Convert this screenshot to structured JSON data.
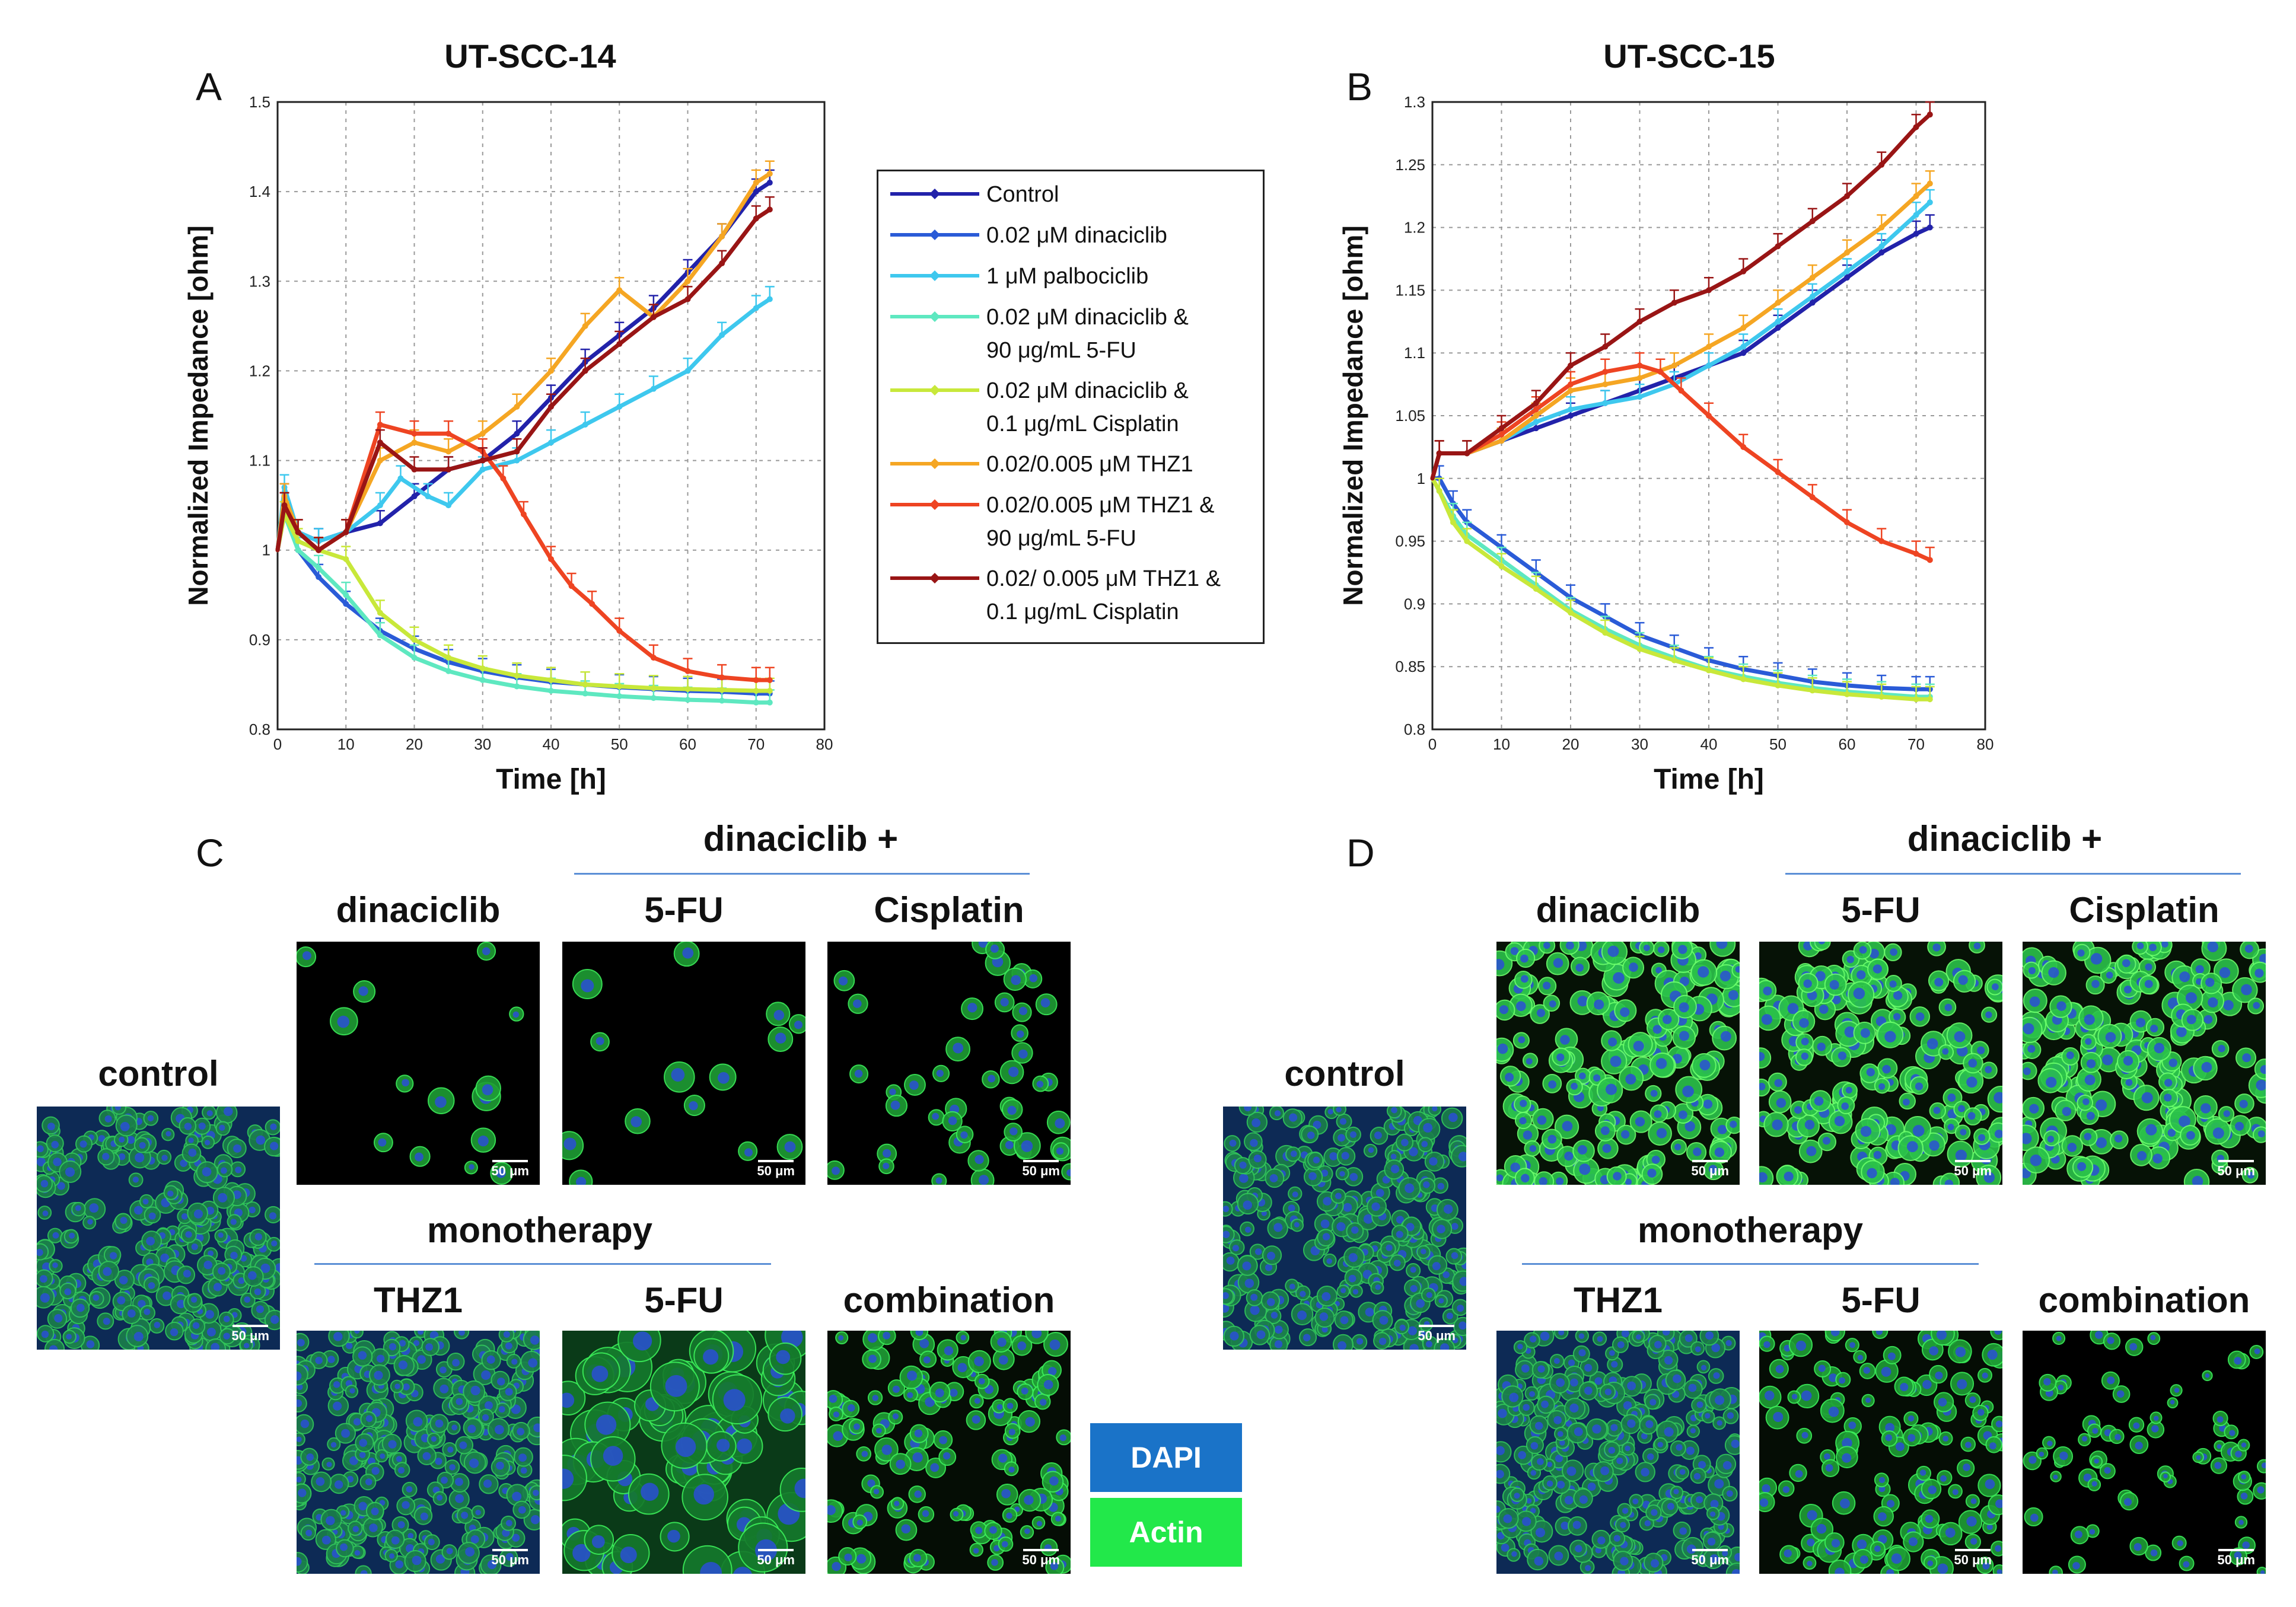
{
  "panels": {
    "a_letter": "A",
    "b_letter": "B",
    "c_letter": "C",
    "d_letter": "D"
  },
  "chart_data": [
    {
      "type": "line",
      "title": "UT-SCC-14",
      "xlabel": "Time [h]",
      "ylabel": "Normalized Impedance [ohm]",
      "xlim": [
        0,
        80
      ],
      "ylim": [
        0.8,
        1.5
      ],
      "xticks": [
        0,
        10,
        20,
        30,
        40,
        50,
        60,
        70,
        80
      ],
      "yticks": [
        0.8,
        0.9,
        1.0,
        1.1,
        1.2,
        1.3,
        1.4,
        1.5
      ],
      "ytick_labels": [
        "0.8",
        "0.9",
        "1",
        "1.1",
        "1.2",
        "1.3",
        "1.4",
        "1.5"
      ],
      "grid": true,
      "series": [
        {
          "name": "Control",
          "color": "#2222aa",
          "x": [
            0,
            1,
            3,
            6,
            10,
            15,
            20,
            25,
            30,
            35,
            40,
            45,
            50,
            55,
            60,
            65,
            70,
            72
          ],
          "y": [
            1.0,
            1.06,
            1.02,
            1.01,
            1.02,
            1.03,
            1.06,
            1.09,
            1.1,
            1.13,
            1.17,
            1.21,
            1.24,
            1.27,
            1.31,
            1.35,
            1.4,
            1.41
          ]
        },
        {
          "name": "0.02 μM dinaciclib",
          "color": "#2a5bd7",
          "x": [
            0,
            1,
            3,
            6,
            10,
            15,
            20,
            25,
            30,
            35,
            40,
            45,
            50,
            55,
            60,
            65,
            70,
            72
          ],
          "y": [
            1.0,
            1.05,
            1.0,
            0.97,
            0.94,
            0.91,
            0.89,
            0.875,
            0.865,
            0.858,
            0.853,
            0.85,
            0.847,
            0.845,
            0.843,
            0.842,
            0.84,
            0.84
          ]
        },
        {
          "name": "1 μM palbociclib",
          "color": "#3ec8ee",
          "x": [
            0,
            1,
            3,
            6,
            10,
            15,
            18,
            22,
            25,
            30,
            35,
            40,
            45,
            50,
            55,
            60,
            65,
            70,
            72
          ],
          "y": [
            1.0,
            1.07,
            1.02,
            1.01,
            1.02,
            1.05,
            1.08,
            1.06,
            1.05,
            1.09,
            1.1,
            1.12,
            1.14,
            1.16,
            1.18,
            1.2,
            1.24,
            1.27,
            1.28
          ]
        },
        {
          "name": "0.02 μM dinaciclib & 90 μg/mL 5-FU",
          "color": "#5ee8c0",
          "x": [
            0,
            1,
            3,
            6,
            10,
            15,
            20,
            25,
            30,
            35,
            40,
            45,
            50,
            55,
            60,
            65,
            70,
            72
          ],
          "y": [
            1.0,
            1.04,
            1.0,
            0.98,
            0.95,
            0.905,
            0.88,
            0.865,
            0.855,
            0.848,
            0.843,
            0.84,
            0.837,
            0.835,
            0.833,
            0.832,
            0.83,
            0.83
          ]
        },
        {
          "name": "0.02 μM dinaciclib & 0.1 μg/mL Cisplatin",
          "color": "#c8e83a",
          "x": [
            0,
            1,
            3,
            6,
            10,
            15,
            20,
            25,
            30,
            35,
            40,
            45,
            50,
            55,
            60,
            65,
            70,
            72
          ],
          "y": [
            1.0,
            1.04,
            1.01,
            1.0,
            0.99,
            0.93,
            0.9,
            0.88,
            0.868,
            0.86,
            0.855,
            0.85,
            0.848,
            0.846,
            0.845,
            0.844,
            0.843,
            0.843
          ]
        },
        {
          "name": "0.02/0.005 μM THZ1",
          "color": "#f5a623",
          "x": [
            0,
            1,
            3,
            6,
            10,
            15,
            20,
            25,
            30,
            35,
            40,
            45,
            50,
            55,
            60,
            65,
            70,
            72
          ],
          "y": [
            1.0,
            1.06,
            1.02,
            1.0,
            1.02,
            1.1,
            1.12,
            1.11,
            1.13,
            1.16,
            1.2,
            1.25,
            1.29,
            1.26,
            1.3,
            1.35,
            1.41,
            1.42
          ]
        },
        {
          "name": "0.02/0.005 μM THZ1 & 90 μg/mL 5-FU",
          "color": "#ee4422",
          "x": [
            0,
            1,
            3,
            6,
            10,
            15,
            20,
            25,
            30,
            33,
            36,
            40,
            43,
            46,
            50,
            55,
            60,
            65,
            70,
            72
          ],
          "y": [
            1.0,
            1.05,
            1.02,
            1.0,
            1.02,
            1.14,
            1.13,
            1.13,
            1.11,
            1.08,
            1.04,
            0.99,
            0.96,
            0.94,
            0.91,
            0.88,
            0.865,
            0.858,
            0.855,
            0.855
          ]
        },
        {
          "name": "0.02/ 0.005 μM THZ1 & 0.1 μg/mL Cisplatin",
          "color": "#991515",
          "x": [
            0,
            1,
            3,
            6,
            10,
            15,
            20,
            25,
            30,
            35,
            40,
            45,
            50,
            55,
            60,
            65,
            70,
            72
          ],
          "y": [
            1.0,
            1.05,
            1.02,
            1.0,
            1.02,
            1.12,
            1.09,
            1.09,
            1.1,
            1.11,
            1.16,
            1.2,
            1.23,
            1.26,
            1.28,
            1.32,
            1.37,
            1.38
          ]
        }
      ]
    },
    {
      "type": "line",
      "title": "UT-SCC-15",
      "xlabel": "Time [h]",
      "ylabel": "Normalized Impedance [ohm]",
      "xlim": [
        0,
        80
      ],
      "ylim": [
        0.8,
        1.3
      ],
      "xticks": [
        0,
        10,
        20,
        30,
        40,
        50,
        60,
        70,
        80
      ],
      "yticks": [
        0.8,
        0.85,
        0.9,
        0.95,
        1.0,
        1.05,
        1.1,
        1.15,
        1.2,
        1.25,
        1.3
      ],
      "ytick_labels": [
        "0.8",
        "0.85",
        "0.9",
        "0.95",
        "1",
        "1.05",
        "1.1",
        "1.15",
        "1.2",
        "1.25",
        "1.3"
      ],
      "grid": true,
      "series": [
        {
          "name": "Control",
          "color": "#2222aa",
          "x": [
            0,
            1,
            5,
            10,
            15,
            20,
            25,
            30,
            35,
            40,
            45,
            50,
            55,
            60,
            65,
            70,
            72
          ],
          "y": [
            1.0,
            1.02,
            1.02,
            1.03,
            1.04,
            1.05,
            1.06,
            1.07,
            1.08,
            1.09,
            1.1,
            1.12,
            1.14,
            1.16,
            1.18,
            1.195,
            1.2
          ]
        },
        {
          "name": "0.02 μM dinaciclib",
          "color": "#2a5bd7",
          "x": [
            0,
            1,
            3,
            5,
            10,
            15,
            20,
            25,
            30,
            35,
            40,
            45,
            50,
            55,
            60,
            65,
            70,
            72
          ],
          "y": [
            1.0,
            1.0,
            0.98,
            0.965,
            0.945,
            0.925,
            0.905,
            0.89,
            0.875,
            0.865,
            0.855,
            0.848,
            0.843,
            0.838,
            0.835,
            0.833,
            0.832,
            0.832
          ]
        },
        {
          "name": "1 μM palbociclib",
          "color": "#3ec8ee",
          "x": [
            0,
            1,
            5,
            10,
            15,
            20,
            25,
            30,
            35,
            40,
            45,
            50,
            55,
            60,
            65,
            70,
            72
          ],
          "y": [
            1.0,
            1.02,
            1.02,
            1.03,
            1.045,
            1.055,
            1.06,
            1.065,
            1.075,
            1.09,
            1.105,
            1.125,
            1.145,
            1.165,
            1.185,
            1.21,
            1.22
          ]
        },
        {
          "name": "0.02 μM dinaciclib & 90 μg/mL 5-FU",
          "color": "#5ee8c0",
          "x": [
            0,
            1,
            3,
            5,
            10,
            15,
            20,
            25,
            30,
            35,
            40,
            45,
            50,
            55,
            60,
            65,
            70,
            72
          ],
          "y": [
            1.0,
            0.99,
            0.97,
            0.955,
            0.935,
            0.915,
            0.895,
            0.88,
            0.867,
            0.857,
            0.848,
            0.842,
            0.837,
            0.833,
            0.83,
            0.828,
            0.826,
            0.826
          ]
        },
        {
          "name": "0.02 μM dinaciclib & 0.1 μg/mL Cisplatin",
          "color": "#c8e83a",
          "x": [
            0,
            1,
            3,
            5,
            10,
            15,
            20,
            25,
            30,
            35,
            40,
            45,
            50,
            55,
            60,
            65,
            70,
            72
          ],
          "y": [
            1.0,
            0.99,
            0.965,
            0.95,
            0.93,
            0.912,
            0.893,
            0.877,
            0.864,
            0.855,
            0.847,
            0.84,
            0.835,
            0.831,
            0.828,
            0.826,
            0.824,
            0.824
          ]
        },
        {
          "name": "0.02/0.005 μM THZ1",
          "color": "#f5a623",
          "x": [
            0,
            1,
            5,
            10,
            15,
            20,
            25,
            30,
            35,
            40,
            45,
            50,
            55,
            60,
            65,
            70,
            72
          ],
          "y": [
            1.0,
            1.02,
            1.02,
            1.03,
            1.05,
            1.07,
            1.075,
            1.08,
            1.09,
            1.105,
            1.12,
            1.14,
            1.16,
            1.18,
            1.2,
            1.225,
            1.235
          ]
        },
        {
          "name": "0.02/0.005 μM THZ1 & 90 μg/mL 5-FU",
          "color": "#ee4422",
          "x": [
            0,
            1,
            5,
            10,
            15,
            20,
            25,
            30,
            33,
            36,
            40,
            45,
            50,
            55,
            60,
            65,
            70,
            72
          ],
          "y": [
            1.0,
            1.02,
            1.02,
            1.035,
            1.055,
            1.075,
            1.085,
            1.09,
            1.085,
            1.07,
            1.05,
            1.025,
            1.005,
            0.985,
            0.965,
            0.95,
            0.94,
            0.935
          ]
        },
        {
          "name": "0.02/ 0.005 μM THZ1 & 0.1 μg/mL Cisplatin",
          "color": "#991515",
          "x": [
            0,
            1,
            5,
            10,
            15,
            20,
            25,
            30,
            35,
            40,
            45,
            50,
            55,
            60,
            65,
            70,
            72
          ],
          "y": [
            1.0,
            1.02,
            1.02,
            1.04,
            1.06,
            1.09,
            1.105,
            1.125,
            1.14,
            1.15,
            1.165,
            1.185,
            1.205,
            1.225,
            1.25,
            1.28,
            1.29
          ]
        }
      ]
    }
  ],
  "legend": {
    "entries": [
      {
        "lines": [
          "Control"
        ],
        "color": "#2222aa"
      },
      {
        "lines": [
          "0.02 μM dinaciclib"
        ],
        "color": "#2a5bd7"
      },
      {
        "lines": [
          "1 μM palbociclib"
        ],
        "color": "#3ec8ee"
      },
      {
        "lines": [
          "0.02 μM dinaciclib &",
          "90 μg/mL 5-FU"
        ],
        "color": "#5ee8c0"
      },
      {
        "lines": [
          "0.02 μM dinaciclib &",
          "0.1 μg/mL Cisplatin"
        ],
        "color": "#c8e83a"
      },
      {
        "lines": [
          "0.02/0.005 μM THZ1"
        ],
        "color": "#f5a623"
      },
      {
        "lines": [
          "0.02/0.005 μM THZ1 &",
          "90 μg/mL 5-FU"
        ],
        "color": "#ee4422"
      },
      {
        "lines": [
          "0.02/ 0.005 μM THZ1 &",
          "0.1 μg/mL Cisplatin"
        ],
        "color": "#991515"
      }
    ]
  },
  "images": {
    "control_label": "control",
    "dinaciclib_label": "dinaciclib",
    "combo_group_label": "dinaciclib +",
    "fu_label": "5-FU",
    "cisplatin_label": "Cisplatin",
    "mono_group_label": "monotherapy",
    "thz1_label": "THZ1",
    "combination_label": "combination",
    "scale_bar": "50 μm"
  },
  "stain_legend": {
    "dapi": "DAPI",
    "dapi_color": "#1a73c8",
    "actin": "Actin",
    "actin_color": "#22e84a"
  }
}
